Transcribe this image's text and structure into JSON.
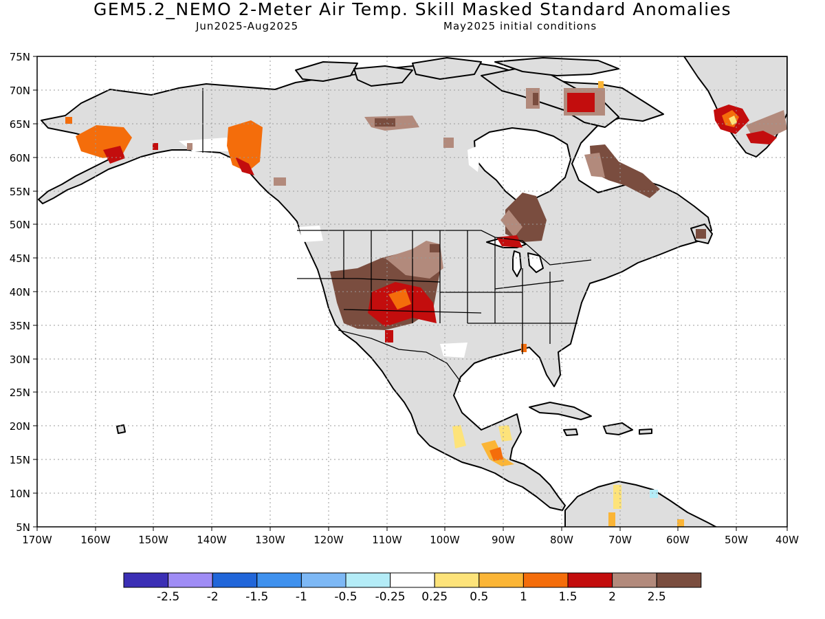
{
  "title": "GEM5.2_NEMO 2-Meter Air Temp. Skill Masked Standard Anomalies",
  "valid_period": "Jun2025-Aug2025",
  "initial_conditions": "May2025 initial conditions",
  "latitude_ticks": [
    "75N",
    "70N",
    "65N",
    "60N",
    "55N",
    "50N",
    "45N",
    "40N",
    "35N",
    "30N",
    "25N",
    "20N",
    "15N",
    "10N",
    "5N"
  ],
  "longitude_ticks": [
    "170W",
    "160W",
    "150W",
    "140W",
    "130W",
    "120W",
    "110W",
    "100W",
    "90W",
    "80W",
    "70W",
    "60W",
    "50W",
    "40W"
  ],
  "colorbar": {
    "labels": [
      "-2.5",
      "-2",
      "-1.5",
      "-1",
      "-0.5",
      "-0.25",
      "0.25",
      "0.5",
      "1",
      "1.5",
      "2",
      "2.5"
    ],
    "colors": [
      "#3b2fb5",
      "#9f8cf5",
      "#2166d9",
      "#3f91ee",
      "#7db8f5",
      "#b4ecf7",
      "#ffffff",
      "#fde37a",
      "#fbb536",
      "#f46d0b",
      "#c30d0d",
      "#b28a7c",
      "#7a4d3f"
    ]
  },
  "colors": {
    "land_masked": "#dedede",
    "ocean": "#ffffff",
    "coastline": "#000000",
    "grid": "#999999"
  }
}
